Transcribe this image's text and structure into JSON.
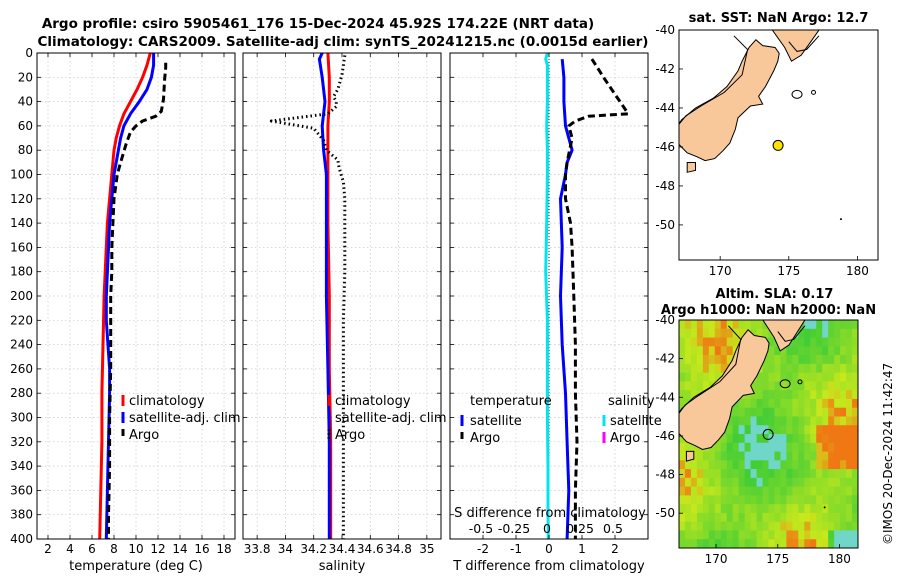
{
  "header": {
    "title_line1": "Argo profile: csiro 5905461_176 15-Dec-2024 45.92S 174.22E (NRT data)",
    "title_line2": "Climatology: CARS2009. Satellite-adj clim: synTS_20241215.nc (0.0015d earlier)"
  },
  "credit": "©IMOS 20-Dec-2024 11:42:47",
  "colors": {
    "climatology": "#ff0000",
    "satellite": "#0000ff",
    "argo": "#000000",
    "sal_satellite": "#00e5ee",
    "sal_argo": "#ff00ff",
    "land": "#f8c89a",
    "ocean": "#ffffff"
  },
  "chart_data": [
    {
      "id": "temperature",
      "type": "line",
      "xlabel": "temperature (deg C)",
      "ylabel": "",
      "xlim": [
        1,
        19
      ],
      "ylim": [
        400,
        0
      ],
      "xticks": [
        "2",
        "4",
        "6",
        "8",
        "10",
        "12",
        "14",
        "16",
        "18"
      ],
      "xtick_values": [
        2,
        4,
        6,
        8,
        10,
        12,
        14,
        16,
        18
      ],
      "yticks": [
        "0",
        "20",
        "40",
        "60",
        "80",
        "100",
        "120",
        "140",
        "160",
        "180",
        "200",
        "220",
        "240",
        "260",
        "280",
        "300",
        "320",
        "340",
        "360",
        "380",
        "400"
      ],
      "ytick_values": [
        0,
        20,
        40,
        60,
        80,
        100,
        120,
        140,
        160,
        180,
        200,
        220,
        240,
        260,
        280,
        300,
        320,
        340,
        360,
        380,
        400
      ],
      "grid": true,
      "legend_position": "lower-right",
      "series": [
        {
          "name": "climatology",
          "color": "#ff0000",
          "style": "solid",
          "points": [
            [
              11.3,
              0
            ],
            [
              11.0,
              10
            ],
            [
              10.6,
              20
            ],
            [
              10.1,
              30
            ],
            [
              9.5,
              40
            ],
            [
              8.9,
              50
            ],
            [
              8.5,
              60
            ],
            [
              8.2,
              70
            ],
            [
              8.0,
              80
            ],
            [
              7.9,
              90
            ],
            [
              7.8,
              100
            ],
            [
              7.6,
              120
            ],
            [
              7.4,
              140
            ],
            [
              7.3,
              160
            ],
            [
              7.2,
              180
            ],
            [
              7.1,
              200
            ],
            [
              7.0,
              240
            ],
            [
              6.9,
              280
            ],
            [
              6.9,
              320
            ],
            [
              6.8,
              360
            ],
            [
              6.7,
              400
            ]
          ]
        },
        {
          "name": "satellite-adj. clim",
          "color": "#0000ff",
          "style": "solid",
          "points": [
            [
              11.6,
              0
            ],
            [
              11.6,
              10
            ],
            [
              11.4,
              20
            ],
            [
              11.0,
              30
            ],
            [
              10.3,
              40
            ],
            [
              9.5,
              50
            ],
            [
              8.9,
              60
            ],
            [
              8.6,
              70
            ],
            [
              8.4,
              80
            ],
            [
              8.2,
              90
            ],
            [
              8.0,
              100
            ],
            [
              7.8,
              120
            ],
            [
              7.6,
              140
            ],
            [
              7.5,
              160
            ],
            [
              7.4,
              180
            ],
            [
              7.3,
              200
            ],
            [
              7.3,
              220
            ],
            [
              7.6,
              260
            ],
            [
              7.6,
              280
            ],
            [
              7.5,
              320
            ],
            [
              7.4,
              360
            ],
            [
              7.3,
              400
            ]
          ]
        },
        {
          "name": "Argo",
          "color": "#000000",
          "style": "dashed",
          "points": [
            [
              12.7,
              8
            ],
            [
              12.7,
              12
            ],
            [
              12.6,
              22
            ],
            [
              12.5,
              38
            ],
            [
              12.3,
              48
            ],
            [
              11.8,
              52
            ],
            [
              10.6,
              56
            ],
            [
              10.0,
              60
            ],
            [
              9.5,
              65
            ],
            [
              9.1,
              75
            ],
            [
              8.6,
              90
            ],
            [
              8.3,
              100
            ],
            [
              8.0,
              120
            ],
            [
              7.9,
              140
            ],
            [
              7.8,
              160
            ],
            [
              7.8,
              180
            ],
            [
              7.7,
              200
            ],
            [
              7.7,
              220
            ],
            [
              7.7,
              260
            ],
            [
              7.6,
              300
            ],
            [
              7.6,
              340
            ],
            [
              7.5,
              380
            ],
            [
              7.5,
              400
            ]
          ]
        }
      ],
      "legend": [
        "climatology",
        "satellite-adj. clim",
        "Argo"
      ]
    },
    {
      "id": "salinity",
      "type": "line",
      "xlabel": "salinity",
      "ylabel": "",
      "xlim": [
        33.7,
        35.1
      ],
      "ylim": [
        400,
        0
      ],
      "xticks": [
        "33.8",
        "34",
        "34.2",
        "34.4",
        "34.6",
        "34.8",
        "35"
      ],
      "xtick_values": [
        33.8,
        34.0,
        34.2,
        34.4,
        34.6,
        34.8,
        35.0
      ],
      "grid": true,
      "legend_position": "lower-right",
      "series": [
        {
          "name": "climatology",
          "color": "#ff0000",
          "style": "solid",
          "points": [
            [
              34.3,
              0
            ],
            [
              34.31,
              20
            ],
            [
              34.31,
              40
            ],
            [
              34.3,
              60
            ],
            [
              34.3,
              80
            ],
            [
              34.3,
              100
            ],
            [
              34.3,
              140
            ],
            [
              34.31,
              200
            ],
            [
              34.31,
              260
            ],
            [
              34.32,
              320
            ],
            [
              34.32,
              360
            ],
            [
              34.32,
              400
            ]
          ]
        },
        {
          "name": "satellite-adj. clim",
          "color": "#0000ff",
          "style": "solid",
          "points": [
            [
              34.26,
              0
            ],
            [
              34.24,
              5
            ],
            [
              34.26,
              20
            ],
            [
              34.28,
              40
            ],
            [
              34.26,
              60
            ],
            [
              34.27,
              80
            ],
            [
              34.29,
              100
            ],
            [
              34.29,
              140
            ],
            [
              34.29,
              200
            ],
            [
              34.3,
              260
            ],
            [
              34.31,
              320
            ],
            [
              34.31,
              360
            ],
            [
              34.31,
              400
            ]
          ]
        },
        {
          "name": "Argo",
          "color": "#000000",
          "style": "dotted",
          "points": [
            [
              34.42,
              2
            ],
            [
              34.41,
              10
            ],
            [
              34.4,
              18
            ],
            [
              34.39,
              22
            ],
            [
              34.37,
              30
            ],
            [
              34.34,
              36
            ],
            [
              34.36,
              40
            ],
            [
              34.36,
              44
            ],
            [
              34.3,
              50
            ],
            [
              33.9,
              56
            ],
            [
              34.2,
              62
            ],
            [
              34.27,
              72
            ],
            [
              34.29,
              80
            ],
            [
              34.37,
              88
            ],
            [
              34.38,
              95
            ],
            [
              34.41,
              106
            ],
            [
              34.42,
              120
            ],
            [
              34.42,
              140
            ],
            [
              34.42,
              180
            ],
            [
              34.41,
              220
            ],
            [
              34.41,
              280
            ],
            [
              34.41,
              320
            ],
            [
              34.41,
              360
            ],
            [
              34.41,
              400
            ]
          ]
        }
      ],
      "legend": [
        "climatology",
        "satellite-adj. clim",
        "Argo"
      ]
    },
    {
      "id": "difference",
      "type": "line",
      "xlabel": "T difference from climatology",
      "xlabel2": "S difference from climatology",
      "xlim": [
        -3,
        3
      ],
      "ylim": [
        400,
        0
      ],
      "xticks": [
        "-2",
        "-1",
        "0",
        "1",
        "2"
      ],
      "xtick_values": [
        -2,
        -1,
        0,
        1,
        2
      ],
      "sticks": [
        "-0.5",
        "-0.25",
        "0",
        "0.25",
        "0.5"
      ],
      "stick_values": [
        -0.5,
        -0.25,
        0,
        0.25,
        0.5
      ],
      "grid": true,
      "series": [
        {
          "name": "temperature satellite",
          "color": "#0000ff",
          "style": "solid",
          "points": [
            [
              0.4,
              5
            ],
            [
              0.45,
              20
            ],
            [
              0.45,
              40
            ],
            [
              0.5,
              60
            ],
            [
              0.7,
              80
            ],
            [
              0.55,
              90
            ],
            [
              0.5,
              100
            ],
            [
              0.35,
              120
            ],
            [
              0.4,
              160
            ],
            [
              0.35,
              200
            ],
            [
              0.4,
              240
            ],
            [
              0.5,
              280
            ],
            [
              0.55,
              320
            ],
            [
              0.6,
              360
            ],
            [
              0.55,
              400
            ]
          ]
        },
        {
          "name": "temperature Argo",
          "color": "#000000",
          "style": "dashed",
          "points": [
            [
              1.3,
              5
            ],
            [
              1.7,
              22
            ],
            [
              2.0,
              34
            ],
            [
              2.2,
              42
            ],
            [
              2.4,
              50
            ],
            [
              1.2,
              52
            ],
            [
              0.8,
              56
            ],
            [
              0.6,
              60
            ],
            [
              0.7,
              70
            ],
            [
              0.55,
              90
            ],
            [
              0.5,
              100
            ],
            [
              0.5,
              120
            ],
            [
              0.65,
              140
            ],
            [
              0.7,
              160
            ],
            [
              0.75,
              200
            ],
            [
              0.8,
              240
            ],
            [
              0.8,
              280
            ],
            [
              0.85,
              320
            ],
            [
              0.8,
              360
            ],
            [
              0.8,
              400
            ]
          ]
        },
        {
          "name": "salinity satellite",
          "color": "#00e5ee",
          "style": "solid",
          "points": [
            [
              -0.05,
              0
            ],
            [
              -0.1,
              5
            ],
            [
              -0.05,
              10
            ],
            [
              -0.05,
              40
            ],
            [
              -0.07,
              60
            ],
            [
              -0.05,
              80
            ],
            [
              -0.05,
              100
            ],
            [
              -0.07,
              140
            ],
            [
              -0.1,
              180
            ],
            [
              -0.05,
              220
            ],
            [
              -0.05,
              260
            ],
            [
              -0.05,
              300
            ],
            [
              -0.03,
              340
            ],
            [
              -0.03,
              380
            ],
            [
              -0.02,
              400
            ]
          ]
        }
      ],
      "legend_left": {
        "title": "temperature",
        "items": [
          "satellite",
          "Argo"
        ]
      },
      "legend_right": {
        "title": "salinity",
        "items": [
          "satellite",
          "Argo"
        ]
      }
    },
    {
      "id": "sst-map",
      "type": "map",
      "title": "sat. SST: NaN Argo: 12.7",
      "xlim": [
        167,
        181.5
      ],
      "ylim": [
        -51.8,
        -40
      ],
      "xticks": [
        "170",
        "175",
        "180"
      ],
      "xtick_values": [
        170,
        175,
        180
      ],
      "yticks": [
        "-40",
        "-42",
        "-44",
        "-46",
        "-48",
        "-50"
      ],
      "ytick_values": [
        -40,
        -42,
        -44,
        -46,
        -48,
        -50
      ],
      "marker": {
        "lon": 174.22,
        "lat": -45.92,
        "color": "#ffe100"
      }
    },
    {
      "id": "sla-map",
      "type": "map",
      "title_line1": "Altim. SLA: 0.17",
      "title_line2": "Argo h1000: NaN h2000: NaN",
      "xlim": [
        167,
        181.5
      ],
      "ylim": [
        -51.8,
        -40
      ],
      "xticks": [
        "170",
        "175",
        "180"
      ],
      "xtick_values": [
        170,
        175,
        180
      ],
      "yticks": [
        "-40",
        "-42",
        "-44",
        "-46",
        "-48",
        "-50"
      ],
      "ytick_values": [
        -40,
        -42,
        -44,
        -46,
        -48,
        -50
      ],
      "marker": {
        "lon": 174.22,
        "lat": -45.92,
        "color": "none"
      }
    }
  ]
}
